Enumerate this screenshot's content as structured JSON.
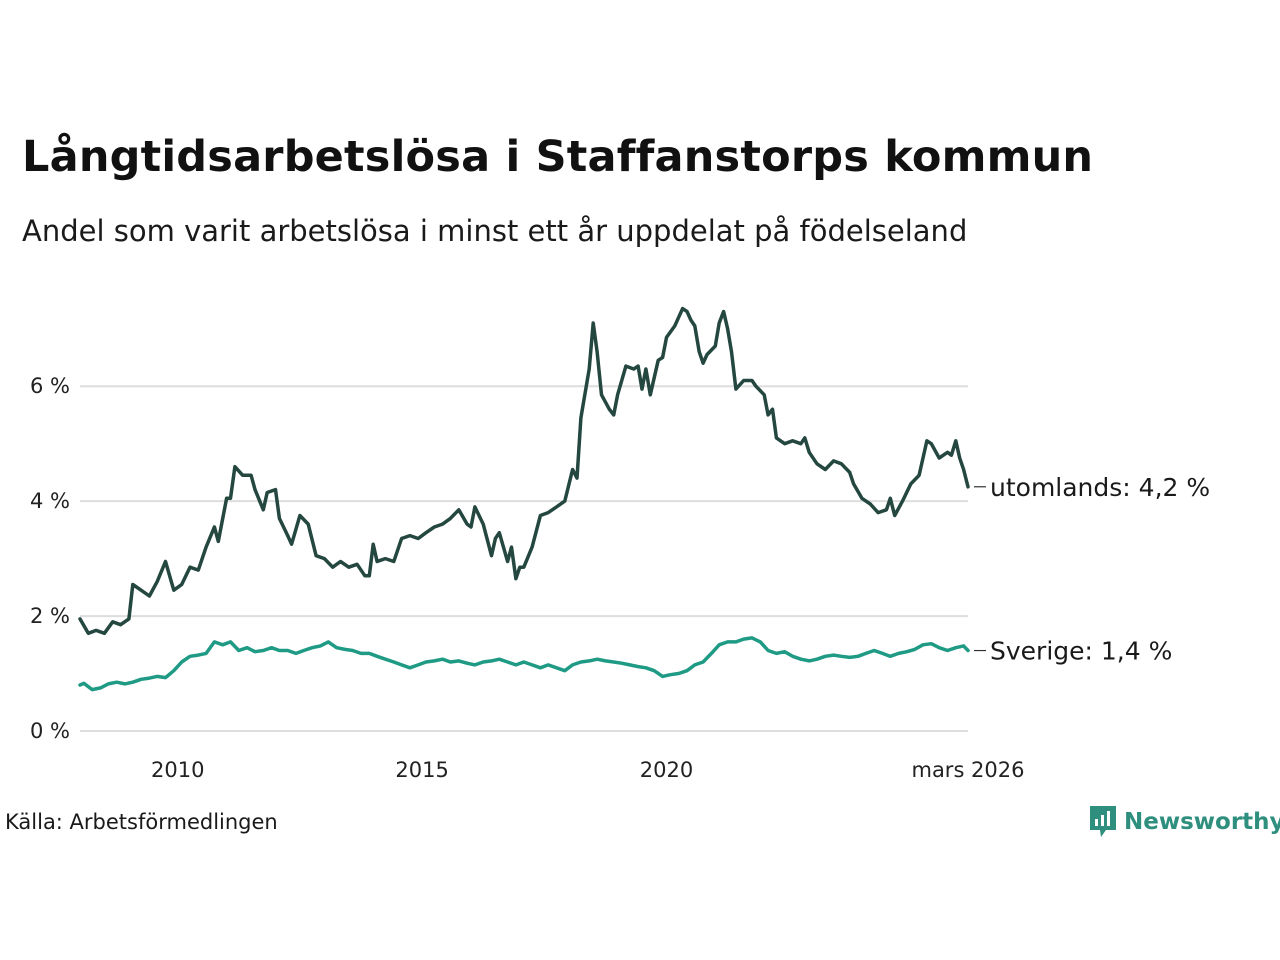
{
  "header": {
    "title": "Långtidsarbetslösa i Staffanstorps kommun",
    "subtitle": "Andel som varit arbetslösa i minst ett år uppdelat på födelseland"
  },
  "footer": {
    "source": "Källa: Arbetsförmedlingen",
    "logo_label": "Newsworthy"
  },
  "colors": {
    "utomlands": "#24473f",
    "sverige": "#1f9a84",
    "grid": "#dddddd",
    "logo": "#2f8f7e"
  },
  "chart_data": {
    "type": "line",
    "title": "Långtidsarbetslösa i Staffanstorps kommun",
    "xlabel": "",
    "ylabel": "",
    "xlim": [
      2008.0,
      2026.17
    ],
    "ylim": [
      0,
      7.5
    ],
    "y_ticks": [
      0,
      2,
      4,
      6
    ],
    "y_tick_labels": [
      "0 %",
      "2 %",
      "4 %",
      "6 %"
    ],
    "x_ticks": [
      2010,
      2015,
      2020,
      2026.17
    ],
    "x_tick_labels": [
      "2010",
      "2015",
      "2020",
      "mars 2026"
    ],
    "grid": true,
    "series": [
      {
        "name": "utomlands",
        "end_label": "utomlands: 4,2 %",
        "points": [
          [
            2008.0,
            1.95
          ],
          [
            2008.17,
            1.7
          ],
          [
            2008.33,
            1.75
          ],
          [
            2008.5,
            1.7
          ],
          [
            2008.67,
            1.9
          ],
          [
            2008.83,
            1.85
          ],
          [
            2009.0,
            1.95
          ],
          [
            2009.08,
            2.55
          ],
          [
            2009.25,
            2.45
          ],
          [
            2009.42,
            2.35
          ],
          [
            2009.58,
            2.6
          ],
          [
            2009.75,
            2.95
          ],
          [
            2009.92,
            2.45
          ],
          [
            2010.08,
            2.55
          ],
          [
            2010.25,
            2.85
          ],
          [
            2010.42,
            2.8
          ],
          [
            2010.58,
            3.2
          ],
          [
            2010.75,
            3.55
          ],
          [
            2010.83,
            3.3
          ],
          [
            2011.0,
            4.05
          ],
          [
            2011.08,
            4.05
          ],
          [
            2011.17,
            4.6
          ],
          [
            2011.33,
            4.45
          ],
          [
            2011.5,
            4.45
          ],
          [
            2011.58,
            4.2
          ],
          [
            2011.75,
            3.85
          ],
          [
            2011.83,
            4.15
          ],
          [
            2012.0,
            4.2
          ],
          [
            2012.08,
            3.7
          ],
          [
            2012.25,
            3.4
          ],
          [
            2012.33,
            3.25
          ],
          [
            2012.5,
            3.75
          ],
          [
            2012.67,
            3.6
          ],
          [
            2012.83,
            3.05
          ],
          [
            2013.0,
            3.0
          ],
          [
            2013.17,
            2.85
          ],
          [
            2013.33,
            2.95
          ],
          [
            2013.5,
            2.85
          ],
          [
            2013.67,
            2.9
          ],
          [
            2013.83,
            2.7
          ],
          [
            2013.92,
            2.7
          ],
          [
            2014.0,
            3.25
          ],
          [
            2014.08,
            2.95
          ],
          [
            2014.25,
            3.0
          ],
          [
            2014.42,
            2.95
          ],
          [
            2014.58,
            3.35
          ],
          [
            2014.75,
            3.4
          ],
          [
            2014.92,
            3.35
          ],
          [
            2015.08,
            3.45
          ],
          [
            2015.25,
            3.55
          ],
          [
            2015.42,
            3.6
          ],
          [
            2015.58,
            3.7
          ],
          [
            2015.75,
            3.85
          ],
          [
            2015.92,
            3.6
          ],
          [
            2016.0,
            3.55
          ],
          [
            2016.08,
            3.9
          ],
          [
            2016.25,
            3.6
          ],
          [
            2016.42,
            3.05
          ],
          [
            2016.5,
            3.35
          ],
          [
            2016.58,
            3.45
          ],
          [
            2016.75,
            2.95
          ],
          [
            2016.83,
            3.2
          ],
          [
            2016.92,
            2.65
          ],
          [
            2017.0,
            2.85
          ],
          [
            2017.08,
            2.85
          ],
          [
            2017.25,
            3.2
          ],
          [
            2017.42,
            3.75
          ],
          [
            2017.58,
            3.8
          ],
          [
            2017.75,
            3.9
          ],
          [
            2017.92,
            4.0
          ],
          [
            2018.08,
            4.55
          ],
          [
            2018.17,
            4.4
          ],
          [
            2018.25,
            5.45
          ],
          [
            2018.42,
            6.3
          ],
          [
            2018.5,
            7.1
          ],
          [
            2018.58,
            6.6
          ],
          [
            2018.67,
            5.85
          ],
          [
            2018.83,
            5.6
          ],
          [
            2018.92,
            5.5
          ],
          [
            2019.0,
            5.85
          ],
          [
            2019.17,
            6.35
          ],
          [
            2019.33,
            6.3
          ],
          [
            2019.42,
            6.35
          ],
          [
            2019.5,
            5.95
          ],
          [
            2019.58,
            6.3
          ],
          [
            2019.67,
            5.85
          ],
          [
            2019.83,
            6.45
          ],
          [
            2019.92,
            6.5
          ],
          [
            2020.0,
            6.85
          ],
          [
            2020.17,
            7.05
          ],
          [
            2020.25,
            7.2
          ],
          [
            2020.33,
            7.35
          ],
          [
            2020.42,
            7.3
          ],
          [
            2020.5,
            7.15
          ],
          [
            2020.58,
            7.05
          ],
          [
            2020.67,
            6.6
          ],
          [
            2020.75,
            6.4
          ],
          [
            2020.83,
            6.55
          ],
          [
            2021.0,
            6.7
          ],
          [
            2021.08,
            7.1
          ],
          [
            2021.17,
            7.3
          ],
          [
            2021.25,
            7.0
          ],
          [
            2021.33,
            6.6
          ],
          [
            2021.42,
            5.95
          ],
          [
            2021.58,
            6.1
          ],
          [
            2021.75,
            6.1
          ],
          [
            2021.83,
            6.0
          ],
          [
            2022.0,
            5.85
          ],
          [
            2022.08,
            5.5
          ],
          [
            2022.17,
            5.6
          ],
          [
            2022.25,
            5.1
          ],
          [
            2022.42,
            5.0
          ],
          [
            2022.58,
            5.05
          ],
          [
            2022.75,
            5.0
          ],
          [
            2022.83,
            5.1
          ],
          [
            2022.92,
            4.85
          ],
          [
            2023.08,
            4.65
          ],
          [
            2023.25,
            4.55
          ],
          [
            2023.42,
            4.7
          ],
          [
            2023.58,
            4.65
          ],
          [
            2023.75,
            4.5
          ],
          [
            2023.83,
            4.3
          ],
          [
            2024.0,
            4.05
          ],
          [
            2024.17,
            3.95
          ],
          [
            2024.33,
            3.8
          ],
          [
            2024.5,
            3.85
          ],
          [
            2024.58,
            4.05
          ],
          [
            2024.67,
            3.75
          ],
          [
            2024.83,
            4.0
          ],
          [
            2025.0,
            4.3
          ],
          [
            2025.17,
            4.45
          ],
          [
            2025.33,
            5.05
          ],
          [
            2025.42,
            5.0
          ],
          [
            2025.58,
            4.75
          ],
          [
            2025.75,
            4.85
          ],
          [
            2025.83,
            4.8
          ],
          [
            2025.92,
            5.05
          ],
          [
            2026.0,
            4.75
          ],
          [
            2026.08,
            4.55
          ],
          [
            2026.17,
            4.25
          ]
        ]
      },
      {
        "name": "Sverige",
        "end_label": "Sverige: 1,4 %",
        "points": [
          [
            2008.0,
            0.8
          ],
          [
            2008.08,
            0.83
          ],
          [
            2008.25,
            0.72
          ],
          [
            2008.42,
            0.75
          ],
          [
            2008.58,
            0.82
          ],
          [
            2008.75,
            0.85
          ],
          [
            2008.92,
            0.82
          ],
          [
            2009.08,
            0.85
          ],
          [
            2009.25,
            0.9
          ],
          [
            2009.42,
            0.92
          ],
          [
            2009.58,
            0.95
          ],
          [
            2009.75,
            0.93
          ],
          [
            2009.92,
            1.05
          ],
          [
            2010.08,
            1.2
          ],
          [
            2010.25,
            1.3
          ],
          [
            2010.42,
            1.32
          ],
          [
            2010.58,
            1.35
          ],
          [
            2010.75,
            1.55
          ],
          [
            2010.92,
            1.5
          ],
          [
            2011.08,
            1.55
          ],
          [
            2011.25,
            1.4
          ],
          [
            2011.42,
            1.45
          ],
          [
            2011.58,
            1.38
          ],
          [
            2011.75,
            1.4
          ],
          [
            2011.92,
            1.45
          ],
          [
            2012.08,
            1.4
          ],
          [
            2012.25,
            1.4
          ],
          [
            2012.42,
            1.35
          ],
          [
            2012.58,
            1.4
          ],
          [
            2012.75,
            1.45
          ],
          [
            2012.92,
            1.48
          ],
          [
            2013.08,
            1.55
          ],
          [
            2013.25,
            1.45
          ],
          [
            2013.42,
            1.42
          ],
          [
            2013.58,
            1.4
          ],
          [
            2013.75,
            1.35
          ],
          [
            2013.92,
            1.35
          ],
          [
            2014.08,
            1.3
          ],
          [
            2014.25,
            1.25
          ],
          [
            2014.42,
            1.2
          ],
          [
            2014.58,
            1.15
          ],
          [
            2014.75,
            1.1
          ],
          [
            2014.92,
            1.15
          ],
          [
            2015.08,
            1.2
          ],
          [
            2015.25,
            1.22
          ],
          [
            2015.42,
            1.25
          ],
          [
            2015.58,
            1.2
          ],
          [
            2015.75,
            1.22
          ],
          [
            2015.92,
            1.18
          ],
          [
            2016.08,
            1.15
          ],
          [
            2016.25,
            1.2
          ],
          [
            2016.42,
            1.22
          ],
          [
            2016.58,
            1.25
          ],
          [
            2016.75,
            1.2
          ],
          [
            2016.92,
            1.15
          ],
          [
            2017.08,
            1.2
          ],
          [
            2017.25,
            1.15
          ],
          [
            2017.42,
            1.1
          ],
          [
            2017.58,
            1.15
          ],
          [
            2017.75,
            1.1
          ],
          [
            2017.92,
            1.05
          ],
          [
            2018.08,
            1.15
          ],
          [
            2018.25,
            1.2
          ],
          [
            2018.42,
            1.22
          ],
          [
            2018.58,
            1.25
          ],
          [
            2018.75,
            1.22
          ],
          [
            2018.92,
            1.2
          ],
          [
            2019.08,
            1.18
          ],
          [
            2019.25,
            1.15
          ],
          [
            2019.42,
            1.12
          ],
          [
            2019.58,
            1.1
          ],
          [
            2019.75,
            1.05
          ],
          [
            2019.92,
            0.95
          ],
          [
            2020.08,
            0.98
          ],
          [
            2020.25,
            1.0
          ],
          [
            2020.42,
            1.05
          ],
          [
            2020.58,
            1.15
          ],
          [
            2020.75,
            1.2
          ],
          [
            2020.92,
            1.35
          ],
          [
            2021.08,
            1.5
          ],
          [
            2021.25,
            1.55
          ],
          [
            2021.42,
            1.55
          ],
          [
            2021.58,
            1.6
          ],
          [
            2021.75,
            1.62
          ],
          [
            2021.92,
            1.55
          ],
          [
            2022.08,
            1.4
          ],
          [
            2022.25,
            1.35
          ],
          [
            2022.42,
            1.38
          ],
          [
            2022.58,
            1.3
          ],
          [
            2022.75,
            1.25
          ],
          [
            2022.92,
            1.22
          ],
          [
            2023.08,
            1.25
          ],
          [
            2023.25,
            1.3
          ],
          [
            2023.42,
            1.32
          ],
          [
            2023.58,
            1.3
          ],
          [
            2023.75,
            1.28
          ],
          [
            2023.92,
            1.3
          ],
          [
            2024.08,
            1.35
          ],
          [
            2024.25,
            1.4
          ],
          [
            2024.42,
            1.35
          ],
          [
            2024.58,
            1.3
          ],
          [
            2024.75,
            1.35
          ],
          [
            2024.92,
            1.38
          ],
          [
            2025.08,
            1.42
          ],
          [
            2025.25,
            1.5
          ],
          [
            2025.42,
            1.52
          ],
          [
            2025.58,
            1.45
          ],
          [
            2025.75,
            1.4
          ],
          [
            2025.92,
            1.45
          ],
          [
            2026.08,
            1.48
          ],
          [
            2026.17,
            1.4
          ]
        ]
      }
    ]
  }
}
